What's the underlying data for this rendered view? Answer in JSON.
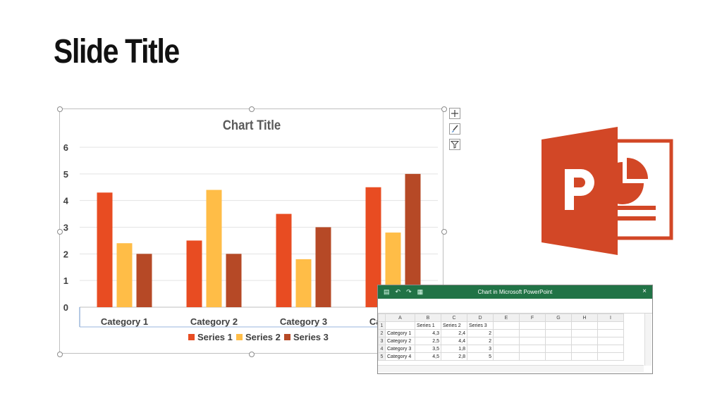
{
  "slide": {
    "title": "Slide Title"
  },
  "chart_data": {
    "type": "bar",
    "title": "Chart Title",
    "categories": [
      "Category 1",
      "Category 2",
      "Category 3",
      "Category 4"
    ],
    "series": [
      {
        "name": "Series 1",
        "values": [
          4.3,
          2.5,
          3.5,
          4.5
        ],
        "color": "#E84C22"
      },
      {
        "name": "Series 2",
        "values": [
          2.4,
          4.4,
          1.8,
          2.8
        ],
        "color": "#FFBD47"
      },
      {
        "name": "Series 3",
        "values": [
          2,
          2,
          3,
          5
        ],
        "color": "#B64926"
      }
    ],
    "ylim": [
      0,
      6
    ],
    "yticks": [
      "0",
      "1",
      "2",
      "3",
      "4",
      "5",
      "6"
    ],
    "grid": true,
    "legend": "bottom"
  },
  "chart_tools": {
    "add_icon": "plus-icon",
    "style_icon": "brush-icon",
    "filter_icon": "filter-icon"
  },
  "spreadsheet": {
    "title": "Chart in Microsoft PowerPoint",
    "close_glyph": "×",
    "columns": [
      "A",
      "B",
      "C",
      "D",
      "E",
      "F",
      "G",
      "H",
      "I"
    ],
    "rows": [
      [
        "1",
        "",
        "Series 1",
        "Series 2",
        "Series 3"
      ],
      [
        "2",
        "Category 1",
        "4,3",
        "2,4",
        "2"
      ],
      [
        "3",
        "Category 2",
        "2,5",
        "4,4",
        "2"
      ],
      [
        "4",
        "Category 3",
        "3,5",
        "1,8",
        "3"
      ],
      [
        "5",
        "Category 4",
        "4,5",
        "2,8",
        "5"
      ]
    ]
  },
  "logo": {
    "name": "PowerPoint",
    "letter": "P",
    "color": "#D24726"
  }
}
